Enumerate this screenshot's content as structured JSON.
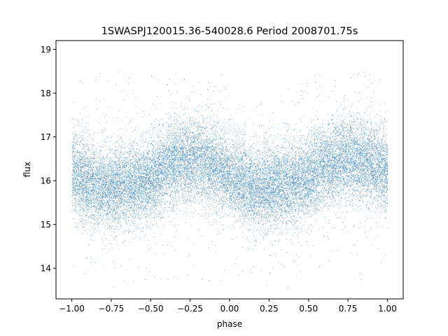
{
  "chart_data": {
    "type": "scatter",
    "title": "1SWASPJ120015.36-540028.6 Period 2008701.75s",
    "xlabel": "phase",
    "ylabel": "flux",
    "xlim": [
      -1.1,
      1.1
    ],
    "ylim": [
      13.3,
      19.2
    ],
    "grid": false,
    "marker_color": "#1f77b4",
    "xticks": [
      -1.0,
      -0.75,
      -0.5,
      -0.25,
      0.0,
      0.25,
      0.5,
      0.75,
      1.0
    ],
    "xtick_labels": [
      "−1.00",
      "−0.75",
      "−0.50",
      "−0.25",
      "0.00",
      "0.25",
      "0.50",
      "0.75",
      "1.00"
    ],
    "yticks": [
      14,
      15,
      16,
      17,
      18,
      19
    ],
    "ytick_labels": [
      "14",
      "15",
      "16",
      "17",
      "18",
      "19"
    ],
    "series": [
      {
        "phase_range": [
          -1.0,
          1.0
        ],
        "approx_points": 20000,
        "median_flux_profile": {
          "phase": [
            -1.0,
            -0.9,
            -0.8,
            -0.7,
            -0.6,
            -0.5,
            -0.4,
            -0.3,
            -0.2,
            -0.1,
            0.0,
            0.1,
            0.2,
            0.3,
            0.4,
            0.5,
            0.6,
            0.7,
            0.8,
            0.9,
            1.0
          ],
          "flux": [
            16.2,
            16.0,
            15.8,
            15.9,
            15.95,
            16.0,
            16.35,
            16.5,
            16.5,
            16.35,
            16.1,
            15.95,
            15.8,
            15.9,
            15.95,
            16.05,
            16.35,
            16.5,
            16.5,
            16.4,
            16.2
          ]
        },
        "flux_spread_range": [
          13.5,
          18.6
        ]
      }
    ]
  }
}
